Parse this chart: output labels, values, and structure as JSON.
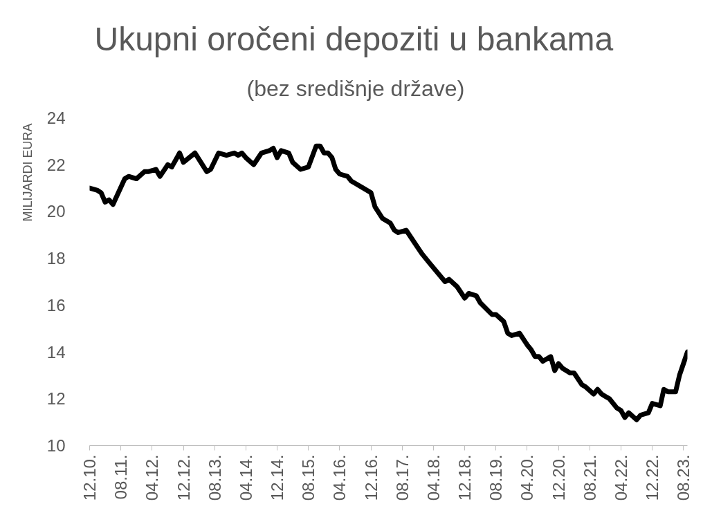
{
  "chart_data": {
    "type": "line",
    "title": "Ukupni oročeni depoziti u bankama",
    "subtitle": "(bez središnje države)",
    "ylabel": "MILIJARDI EURA",
    "x": [
      "2010-12",
      "2011-02",
      "2011-03",
      "2011-04",
      "2011-05",
      "2011-06",
      "2011-09",
      "2011-10",
      "2011-12",
      "2012-02",
      "2012-03",
      "2012-05",
      "2012-06",
      "2012-08",
      "2012-09",
      "2012-11",
      "2012-12",
      "2013-03",
      "2013-06",
      "2013-07",
      "2013-09",
      "2013-11",
      "2014-01",
      "2014-02",
      "2014-03",
      "2014-04",
      "2014-06",
      "2014-08",
      "2014-10",
      "2014-11",
      "2014-12",
      "2015-01",
      "2015-03",
      "2015-04",
      "2015-06",
      "2015-08",
      "2015-10",
      "2015-11",
      "2015-12",
      "2016-01",
      "2016-02",
      "2016-03",
      "2016-04",
      "2016-06",
      "2016-07",
      "2016-09",
      "2016-10",
      "2016-12",
      "2017-01",
      "2017-03",
      "2017-05",
      "2017-06",
      "2017-07",
      "2017-09",
      "2017-11",
      "2018-01",
      "2018-03",
      "2018-07",
      "2018-08",
      "2018-10",
      "2018-12",
      "2019-01",
      "2019-03",
      "2019-04",
      "2019-07",
      "2019-08",
      "2019-10",
      "2019-11",
      "2019-12",
      "2020-02",
      "2020-04",
      "2020-05",
      "2020-06",
      "2020-07",
      "2020-08",
      "2020-10",
      "2020-11",
      "2020-12",
      "2021-01",
      "2021-03",
      "2021-04",
      "2021-06",
      "2021-07",
      "2021-09",
      "2021-10",
      "2021-11",
      "2021-12",
      "2022-01",
      "2022-03",
      "2022-04",
      "2022-05",
      "2022-06",
      "2022-08",
      "2022-09",
      "2022-11",
      "2022-12",
      "2023-02",
      "2023-03",
      "2023-04",
      "2023-06",
      "2023-07",
      "2023-08",
      "2023-09"
    ],
    "series": [
      {
        "color": "#000000",
        "values": [
          21.0,
          20.9,
          20.8,
          20.4,
          20.5,
          20.3,
          21.4,
          21.5,
          21.4,
          21.7,
          21.7,
          21.8,
          21.5,
          22.0,
          21.9,
          22.5,
          22.1,
          22.5,
          21.7,
          21.8,
          22.5,
          22.4,
          22.5,
          22.4,
          22.5,
          22.3,
          22.0,
          22.5,
          22.6,
          22.7,
          22.3,
          22.6,
          22.5,
          22.1,
          21.8,
          21.9,
          22.8,
          22.8,
          22.5,
          22.5,
          22.3,
          21.8,
          21.6,
          21.5,
          21.3,
          21.1,
          21.0,
          20.8,
          20.2,
          19.7,
          19.5,
          19.2,
          19.1,
          19.2,
          18.7,
          18.2,
          17.8,
          17.0,
          17.1,
          16.8,
          16.3,
          16.5,
          16.4,
          16.1,
          15.6,
          15.6,
          15.3,
          14.8,
          14.7,
          14.8,
          14.3,
          14.1,
          13.8,
          13.8,
          13.6,
          13.8,
          13.2,
          13.5,
          13.3,
          13.1,
          13.1,
          12.6,
          12.5,
          12.2,
          12.4,
          12.2,
          12.1,
          12.0,
          11.6,
          11.5,
          11.2,
          11.4,
          11.1,
          11.3,
          11.4,
          11.8,
          11.7,
          12.4,
          12.3,
          12.3,
          13.0,
          13.5,
          14.0
        ]
      }
    ],
    "xlim": [
      "2010-12",
      "2023-09"
    ],
    "xticks": [
      {
        "value": "2010-12",
        "label": "12.10."
      },
      {
        "value": "2011-08",
        "label": "08.11."
      },
      {
        "value": "2012-04",
        "label": "04.12."
      },
      {
        "value": "2012-12",
        "label": "12.12."
      },
      {
        "value": "2013-08",
        "label": "08.13."
      },
      {
        "value": "2014-04",
        "label": "04.14."
      },
      {
        "value": "2014-12",
        "label": "12.14."
      },
      {
        "value": "2015-08",
        "label": "08.15."
      },
      {
        "value": "2016-04",
        "label": "04.16."
      },
      {
        "value": "2016-12",
        "label": "12.16."
      },
      {
        "value": "2017-08",
        "label": "08.17."
      },
      {
        "value": "2018-04",
        "label": "04.18."
      },
      {
        "value": "2018-12",
        "label": "12.18."
      },
      {
        "value": "2019-08",
        "label": "08.19."
      },
      {
        "value": "2020-04",
        "label": "04.20."
      },
      {
        "value": "2020-12",
        "label": "12.20."
      },
      {
        "value": "2021-08",
        "label": "08.21."
      },
      {
        "value": "2022-04",
        "label": "04.22."
      },
      {
        "value": "2022-12",
        "label": "12.22."
      },
      {
        "value": "2023-08",
        "label": "08.23."
      }
    ],
    "ylim": [
      10,
      24
    ],
    "yticks": [
      10,
      12,
      14,
      16,
      18,
      20,
      22,
      24
    ],
    "grid": false,
    "line_style": "solid"
  }
}
